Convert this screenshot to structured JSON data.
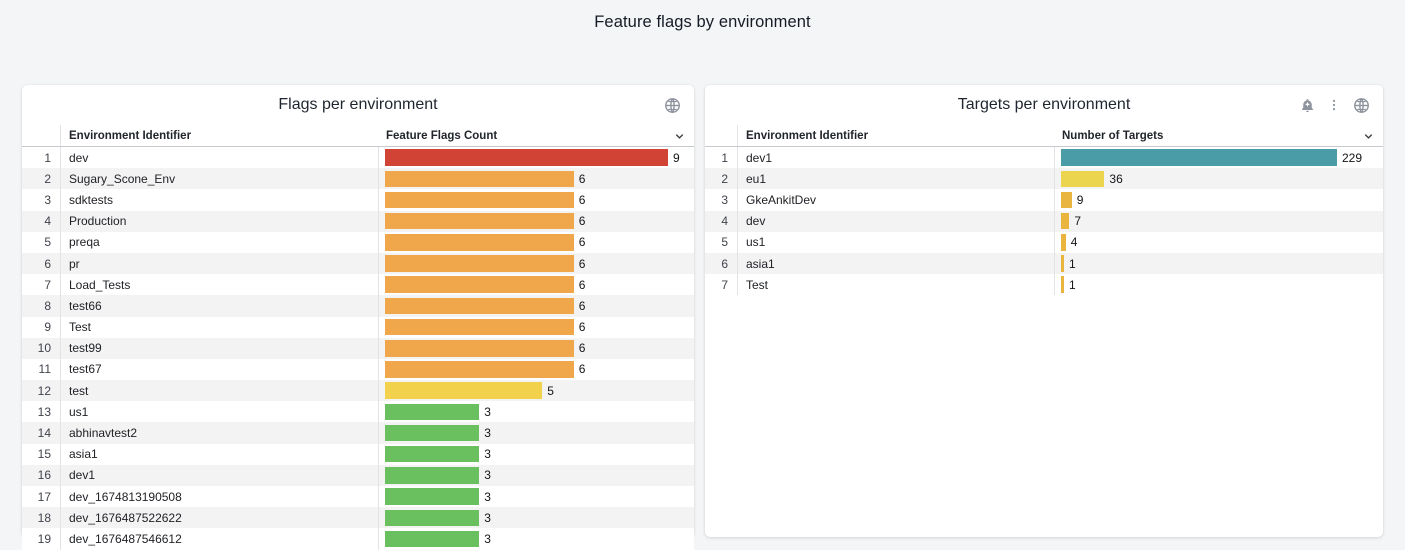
{
  "page": {
    "title": "Feature flags by environment"
  },
  "colors": {
    "page_bg": "#f4f5f6",
    "panel_bg": "#ffffff",
    "row_alt_bg": "#f3f3f4",
    "red": "#d14334",
    "orange": "#f0a64b",
    "yellow": "#f2d24d",
    "green": "#6abf5e",
    "teal": "#4a9da6",
    "light_yellow": "#ecd54e",
    "gold": "#eab53e",
    "icon_gray": "#8e939e"
  },
  "panels": [
    {
      "title": "Flags per environment",
      "icons": [
        "globe-icon"
      ],
      "columns": {
        "index": "",
        "identifier": "Environment Identifier",
        "value": "Feature Flags Count"
      },
      "max": 9,
      "rows": [
        {
          "rank": 1,
          "env": "dev",
          "value": 9,
          "color": "#d14334"
        },
        {
          "rank": 2,
          "env": "Sugary_Scone_Env",
          "value": 6,
          "color": "#f0a64b"
        },
        {
          "rank": 3,
          "env": "sdktests",
          "value": 6,
          "color": "#f0a64b"
        },
        {
          "rank": 4,
          "env": "Production",
          "value": 6,
          "color": "#f0a64b"
        },
        {
          "rank": 5,
          "env": "preqa",
          "value": 6,
          "color": "#f0a64b"
        },
        {
          "rank": 6,
          "env": "pr",
          "value": 6,
          "color": "#f0a64b"
        },
        {
          "rank": 7,
          "env": "Load_Tests",
          "value": 6,
          "color": "#f0a64b"
        },
        {
          "rank": 8,
          "env": "test66",
          "value": 6,
          "color": "#f0a64b"
        },
        {
          "rank": 9,
          "env": "Test",
          "value": 6,
          "color": "#f0a64b"
        },
        {
          "rank": 10,
          "env": "test99",
          "value": 6,
          "color": "#f0a64b"
        },
        {
          "rank": 11,
          "env": "test67",
          "value": 6,
          "color": "#f0a64b"
        },
        {
          "rank": 12,
          "env": "test",
          "value": 5,
          "color": "#f2d24d"
        },
        {
          "rank": 13,
          "env": "us1",
          "value": 3,
          "color": "#6abf5e"
        },
        {
          "rank": 14,
          "env": "abhinavtest2",
          "value": 3,
          "color": "#6abf5e"
        },
        {
          "rank": 15,
          "env": "asia1",
          "value": 3,
          "color": "#6abf5e"
        },
        {
          "rank": 16,
          "env": "dev1",
          "value": 3,
          "color": "#6abf5e"
        },
        {
          "rank": 17,
          "env": "dev_1674813190508",
          "value": 3,
          "color": "#6abf5e"
        },
        {
          "rank": 18,
          "env": "dev_1676487522622",
          "value": 3,
          "color": "#6abf5e"
        },
        {
          "rank": 19,
          "env": "dev_1676487546612",
          "value": 3,
          "color": "#6abf5e"
        }
      ]
    },
    {
      "title": "Targets per environment",
      "icons": [
        "bell-plus-icon",
        "kebab-menu-icon",
        "globe-icon"
      ],
      "columns": {
        "index": "",
        "identifier": "Environment Identifier",
        "value": "Number of Targets"
      },
      "max": 229,
      "rows": [
        {
          "rank": 1,
          "env": "dev1",
          "value": 229,
          "color": "#4a9da6"
        },
        {
          "rank": 2,
          "env": "eu1",
          "value": 36,
          "color": "#ecd54e"
        },
        {
          "rank": 3,
          "env": "GkeAnkitDev",
          "value": 9,
          "color": "#eab53e"
        },
        {
          "rank": 4,
          "env": "dev",
          "value": 7,
          "color": "#eab53e"
        },
        {
          "rank": 5,
          "env": "us1",
          "value": 4,
          "color": "#eab53e"
        },
        {
          "rank": 6,
          "env": "asia1",
          "value": 1,
          "color": "#eab53e"
        },
        {
          "rank": 7,
          "env": "Test",
          "value": 1,
          "color": "#eab53e"
        }
      ]
    }
  ],
  "chart_data": [
    {
      "type": "bar",
      "title": "Flags per environment",
      "orientation": "horizontal",
      "categories": [
        "dev",
        "Sugary_Scone_Env",
        "sdktests",
        "Production",
        "preqa",
        "pr",
        "Load_Tests",
        "test66",
        "Test",
        "test99",
        "test67",
        "test",
        "us1",
        "abhinavtest2",
        "asia1",
        "dev1",
        "dev_1674813190508",
        "dev_1676487522622",
        "dev_1676487546612"
      ],
      "values": [
        9,
        6,
        6,
        6,
        6,
        6,
        6,
        6,
        6,
        6,
        6,
        5,
        3,
        3,
        3,
        3,
        3,
        3,
        3
      ],
      "xlabel": "Feature Flags Count",
      "ylabel": "Environment Identifier",
      "xlim": [
        0,
        9
      ],
      "legend": false,
      "grid": false
    },
    {
      "type": "bar",
      "title": "Targets per environment",
      "orientation": "horizontal",
      "categories": [
        "dev1",
        "eu1",
        "GkeAnkitDev",
        "dev",
        "us1",
        "asia1",
        "Test"
      ],
      "values": [
        229,
        36,
        9,
        7,
        4,
        1,
        1
      ],
      "xlabel": "Number of Targets",
      "ylabel": "Environment Identifier",
      "xlim": [
        0,
        229
      ],
      "legend": false,
      "grid": false
    }
  ]
}
